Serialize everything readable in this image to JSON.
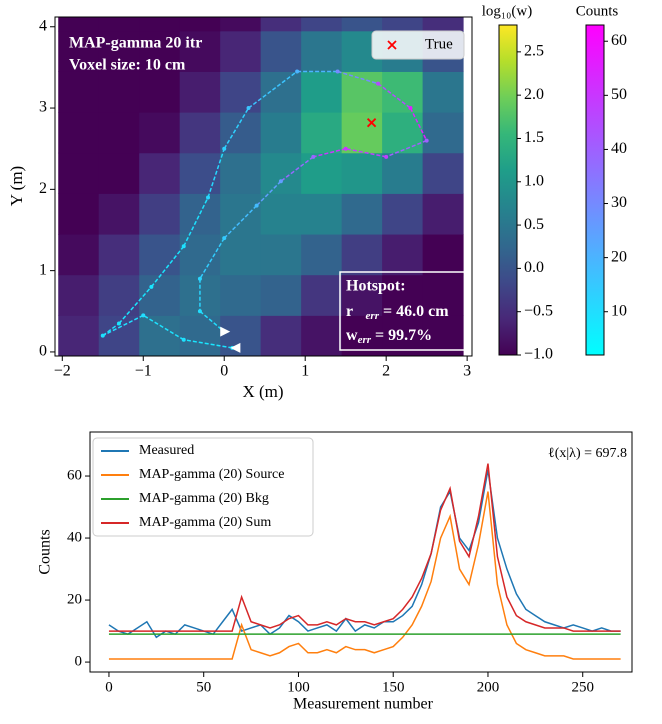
{
  "chart_data": [
    {
      "type": "heatmap",
      "xlabel": "X (m)",
      "ylabel": "Y (m)",
      "annotations": [
        "MAP-gamma 20 itr",
        "Voxel size: 10 cm"
      ],
      "hotspot": {
        "title": "Hotspot:",
        "r_symbol": "r⃗",
        "r_sub": "err",
        "r_text": " = 46.0 cm",
        "w_symbol": "w",
        "w_sub": "err",
        "w_text": " = 99.7%"
      },
      "xlim": [
        -2.09,
        3.06
      ],
      "ylim": [
        -0.05,
        4.12
      ],
      "xticks": [
        {
          "value": -2,
          "label": "−2"
        },
        {
          "value": -1,
          "label": "−1"
        },
        0,
        1,
        2,
        3
      ],
      "yticks": [
        0,
        1,
        2,
        3,
        4
      ],
      "x": [
        -1.8,
        -1.3,
        -0.8,
        -0.3,
        0.2,
        0.7,
        1.2,
        1.7,
        2.2,
        2.7
      ],
      "y": [
        0.2,
        0.7,
        1.2,
        1.7,
        2.2,
        2.7,
        3.2,
        3.7,
        4.2
      ],
      "z": [
        [
          -0.6,
          -0.2,
          0.4,
          0.3,
          0.0,
          -0.5,
          -0.8,
          -1,
          -1,
          -1
        ],
        [
          -0.7,
          -0.3,
          0.2,
          0.4,
          0.3,
          0.2,
          -0.4,
          -0.8,
          -1,
          -1
        ],
        [
          -0.9,
          -0.5,
          0.0,
          0.3,
          0.5,
          0.5,
          0.2,
          -0.3,
          -0.7,
          -1
        ],
        [
          -1,
          -0.8,
          -0.3,
          0.2,
          0.5,
          0.7,
          0.7,
          0.3,
          -0.2,
          -0.7
        ],
        [
          -1,
          -1,
          -0.6,
          -0.1,
          0.4,
          0.8,
          1.1,
          1.0,
          0.6,
          -0.2
        ],
        [
          -1,
          -1,
          -0.9,
          -0.4,
          0.1,
          0.6,
          1.3,
          1.9,
          1.4,
          0.3
        ],
        [
          -1,
          -1,
          -1,
          -0.7,
          -0.2,
          0.4,
          1.1,
          1.8,
          1.6,
          0.5
        ],
        [
          -1,
          -1,
          -1,
          -0.9,
          -0.6,
          0.0,
          0.5,
          0.8,
          0.6,
          0.0
        ],
        [
          -1,
          -1,
          -1,
          -1,
          -0.9,
          -0.5,
          -0.2,
          0.0,
          -0.2,
          -0.5
        ]
      ],
      "colormap": "viridis",
      "colorbar": {
        "label": "log₁₀(w)",
        "lim": [
          -1.0,
          2.81
        ],
        "ticks": [
          {
            "value": -1,
            "label": "−1.0"
          },
          {
            "value": -0.5,
            "label": "−0.5"
          },
          {
            "value": 0,
            "label": "0.0"
          },
          0.5,
          {
            "value": 1,
            "label": "1.0"
          },
          1.5,
          {
            "value": 2,
            "label": "2.0"
          },
          2.5
        ]
      },
      "trajectory": {
        "x": [
          0.1,
          -0.5,
          -1.0,
          -1.5,
          -1.3,
          -0.9,
          -0.5,
          -0.2,
          0.0,
          0.3,
          0.9,
          1.4,
          1.9,
          2.3,
          2.5,
          2.0,
          1.5,
          1.1,
          0.7,
          0.4,
          0.0,
          -0.3,
          -0.3,
          0.0
        ],
        "y": [
          0.05,
          0.15,
          0.45,
          0.2,
          0.35,
          0.8,
          1.3,
          1.9,
          2.5,
          3.0,
          3.45,
          3.45,
          3.3,
          3.0,
          2.6,
          2.4,
          2.5,
          2.4,
          2.1,
          1.8,
          1.4,
          0.9,
          0.5,
          0.25
        ],
        "counts": [
          8,
          9,
          10,
          9,
          8,
          8,
          9,
          11,
          13,
          16,
          20,
          30,
          45,
          55,
          40,
          48,
          50,
          38,
          25,
          18,
          14,
          12,
          10,
          9
        ]
      },
      "counts_colorbar": {
        "label": "Counts",
        "lim": [
          2,
          63
        ],
        "ticks": [
          10,
          20,
          30,
          40,
          50,
          60
        ]
      },
      "true_source": {
        "name": "True",
        "x": 1.82,
        "y": 2.82,
        "color": "#ff0000"
      },
      "legend": "upper right"
    },
    {
      "type": "line",
      "xlabel": "Measurement number",
      "ylabel": "Counts",
      "annotation": "ℓ(x|λ) = 697.8",
      "xlim": [
        -10,
        276
      ],
      "ylim": [
        -3.2,
        74.2
      ],
      "xticks": [
        0,
        50,
        100,
        150,
        200,
        250
      ],
      "yticks": [
        0,
        20,
        40,
        60
      ],
      "legend": "upper left",
      "x": [
        0,
        5,
        10,
        15,
        20,
        25,
        30,
        35,
        40,
        45,
        50,
        55,
        60,
        65,
        70,
        75,
        80,
        85,
        90,
        95,
        100,
        105,
        110,
        115,
        120,
        125,
        130,
        135,
        140,
        145,
        150,
        155,
        160,
        165,
        170,
        175,
        180,
        185,
        190,
        195,
        200,
        205,
        210,
        215,
        220,
        225,
        230,
        235,
        240,
        245,
        250,
        255,
        260,
        265,
        270
      ],
      "series": [
        {
          "name": "Measured",
          "color": "#1f77b4",
          "values": [
            12,
            10,
            9,
            11,
            13,
            8,
            10,
            9,
            12,
            11,
            10,
            9,
            13,
            17,
            10,
            11,
            12,
            9,
            11,
            15,
            13,
            10,
            11,
            12,
            10,
            14,
            10,
            12,
            11,
            13,
            13,
            15,
            18,
            25,
            35,
            50,
            55,
            40,
            36,
            45,
            62,
            40,
            30,
            22,
            17,
            15,
            13,
            12,
            11,
            12,
            11,
            10,
            11,
            10,
            10
          ]
        },
        {
          "name": "MAP-gamma (20) Source",
          "color": "#ff7f0e",
          "values": [
            1,
            1,
            1,
            1,
            1,
            1,
            1,
            1,
            1,
            1,
            1,
            1,
            1,
            1,
            12,
            4,
            3,
            2,
            3,
            5,
            6,
            3,
            3,
            4,
            3,
            5,
            4,
            4,
            3,
            4,
            5,
            8,
            12,
            18,
            26,
            40,
            47,
            30,
            25,
            38,
            55,
            25,
            12,
            6,
            4,
            3,
            2,
            2,
            2,
            1,
            1,
            1,
            1,
            1,
            1
          ]
        },
        {
          "name": "MAP-gamma (20) Bkg",
          "color": "#2ca02c",
          "values": [
            9,
            9,
            9,
            9,
            9,
            9,
            9,
            9,
            9,
            9,
            9,
            9,
            9,
            9,
            9,
            9,
            9,
            9,
            9,
            9,
            9,
            9,
            9,
            9,
            9,
            9,
            9,
            9,
            9,
            9,
            9,
            9,
            9,
            9,
            9,
            9,
            9,
            9,
            9,
            9,
            9,
            9,
            9,
            9,
            9,
            9,
            9,
            9,
            9,
            9,
            9,
            9,
            9,
            9,
            9
          ]
        },
        {
          "name": "MAP-gamma (20) Sum",
          "color": "#d62728",
          "values": [
            10,
            10,
            10,
            10,
            10,
            10,
            10,
            10,
            10,
            10,
            10,
            10,
            10,
            10,
            21,
            13,
            12,
            11,
            12,
            14,
            15,
            12,
            12,
            13,
            12,
            14,
            13,
            13,
            12,
            13,
            14,
            17,
            21,
            27,
            35,
            49,
            56,
            39,
            34,
            47,
            64,
            34,
            21,
            15,
            13,
            12,
            11,
            11,
            11,
            10,
            10,
            10,
            10,
            10,
            10
          ]
        }
      ]
    }
  ]
}
